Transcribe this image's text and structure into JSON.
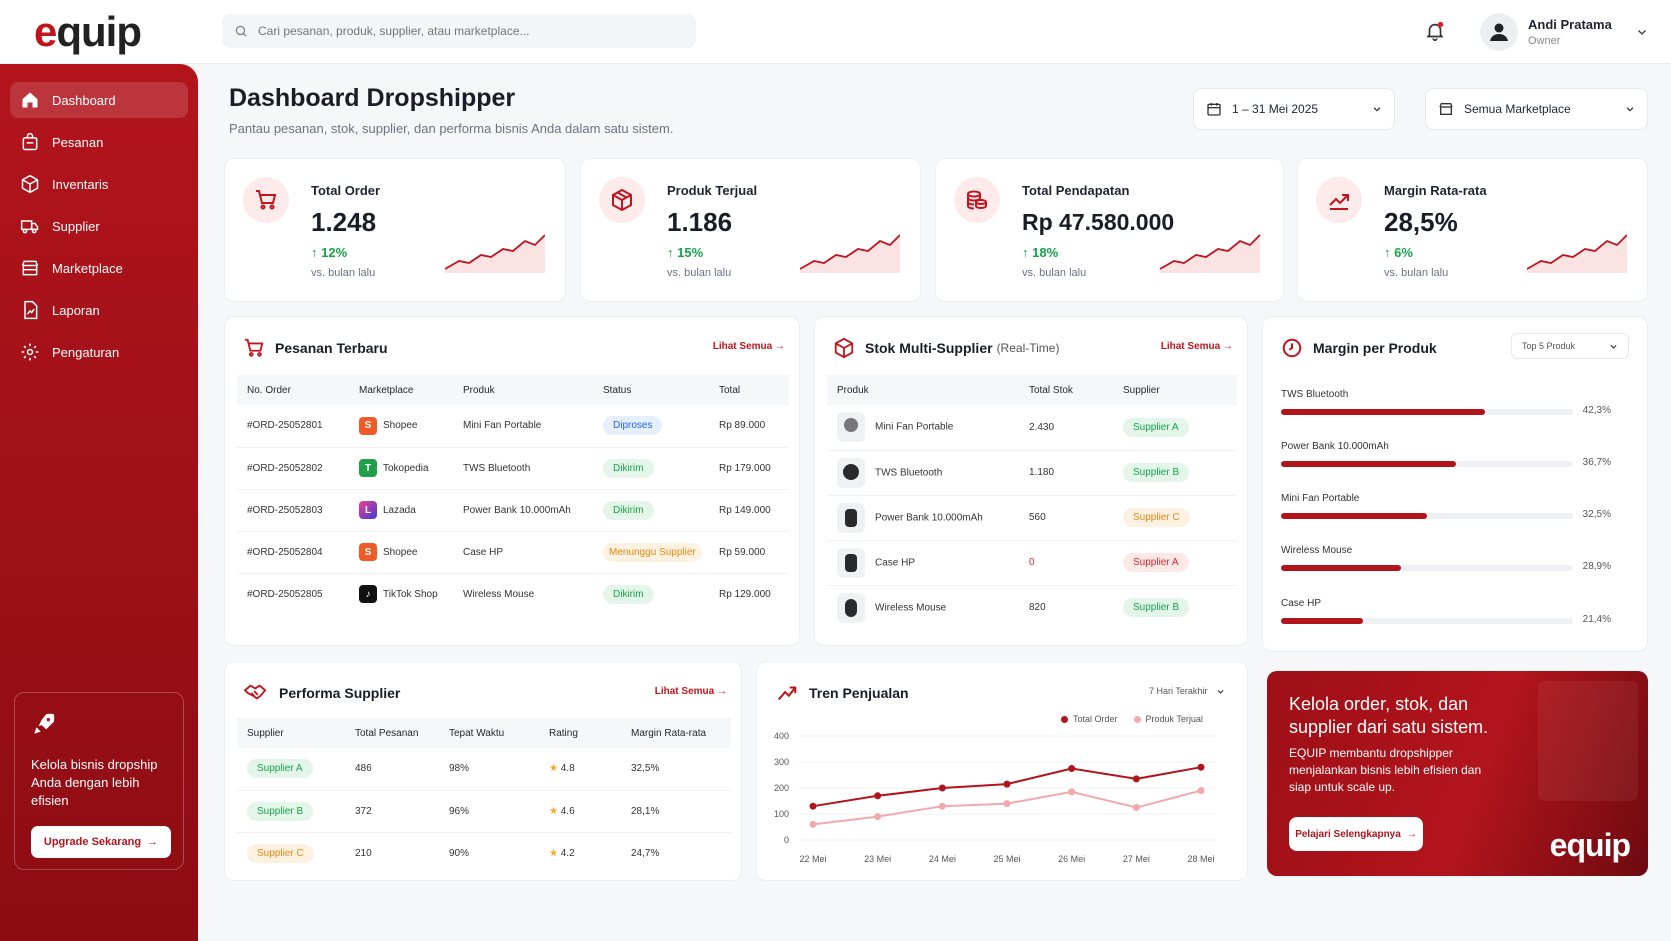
{
  "brand": {
    "logo_text": "equip",
    "logo_accent": "e",
    "logo_rest": "quip",
    "accent_color": "#c0151e"
  },
  "search": {
    "placeholder": "Cari pesanan, produk, supplier, atau marketplace..."
  },
  "user": {
    "name": "Andi Pratama",
    "role": "Owner"
  },
  "sidebar": {
    "items": [
      {
        "label": "Dashboard",
        "icon": "home-icon",
        "active": true
      },
      {
        "label": "Pesanan",
        "icon": "bag-icon"
      },
      {
        "label": "Inventaris",
        "icon": "box-icon"
      },
      {
        "label": "Supplier",
        "icon": "truck-icon"
      },
      {
        "label": "Marketplace",
        "icon": "store-icon"
      },
      {
        "label": "Laporan",
        "icon": "report-icon"
      },
      {
        "label": "Pengaturan",
        "icon": "gear-icon"
      }
    ],
    "promo": {
      "text": "Kelola bisnis dropship Anda dengan lebih efisien",
      "button": "Upgrade Sekarang"
    }
  },
  "header": {
    "title": "Dashboard Dropshipper",
    "subtitle": "Pantau pesanan, stok, supplier, dan performa bisnis Anda dalam satu sistem.",
    "date_range": "1 – 31 Mei 2025",
    "marketplace_filter": "Semua Marketplace"
  },
  "stats": [
    {
      "label": "Total Order",
      "value": "1.248",
      "growth": "12%",
      "note": "vs. bulan lalu",
      "icon": "cart-icon"
    },
    {
      "label": "Produk Terjual",
      "value": "1.186",
      "growth": "15%",
      "note": "vs. bulan lalu",
      "icon": "package-icon"
    },
    {
      "label": "Total Pendapatan",
      "value": "Rp 47.580.000",
      "growth": "18%",
      "note": "vs. bulan lalu",
      "icon": "coins-icon"
    },
    {
      "label": "Margin Rata-rata",
      "value": "28,5%",
      "growth": "6%",
      "note": "vs. bulan lalu",
      "icon": "trend-icon"
    }
  ],
  "orders": {
    "title": "Pesanan Terbaru",
    "see_all": "Lihat Semua",
    "columns": [
      "No. Order",
      "Marketplace",
      "Produk",
      "Status",
      "Total"
    ],
    "rows": [
      {
        "id": "#ORD-25052801",
        "marketplace": "Shopee",
        "product": "Mini Fan Portable",
        "status": "Diproses",
        "total": "Rp 89.000"
      },
      {
        "id": "#ORD-25052802",
        "marketplace": "Tokopedia",
        "product": "TWS Bluetooth",
        "status": "Dikirim",
        "total": "Rp 179.000"
      },
      {
        "id": "#ORD-25052803",
        "marketplace": "Lazada",
        "product": "Power Bank 10.000mAh",
        "status": "Dikirim",
        "total": "Rp 149.000"
      },
      {
        "id": "#ORD-25052804",
        "marketplace": "Shopee",
        "product": "Case HP",
        "status": "Menunggu Supplier",
        "total": "Rp 59.000"
      },
      {
        "id": "#ORD-25052805",
        "marketplace": "TikTok Shop",
        "product": "Wireless Mouse",
        "status": "Dikirim",
        "total": "Rp 129.000"
      }
    ]
  },
  "stock": {
    "title": "Stok Multi-Supplier",
    "title_suffix": "(Real-Time)",
    "see_all": "Lihat Semua",
    "columns": [
      "Produk",
      "Total Stok",
      "Supplier"
    ],
    "rows": [
      {
        "product": "Mini Fan Portable",
        "stock": "2.430",
        "supplier": "Supplier A"
      },
      {
        "product": "TWS Bluetooth",
        "stock": "1.180",
        "supplier": "Supplier B"
      },
      {
        "product": "Power Bank 10.000mAh",
        "stock": "560",
        "supplier": "Supplier C"
      },
      {
        "product": "Case HP",
        "stock": "0",
        "supplier": "Supplier A"
      },
      {
        "product": "Wireless Mouse",
        "stock": "820",
        "supplier": "Supplier B"
      }
    ]
  },
  "margin": {
    "title": "Margin per Produk",
    "filter": "Top 5 Produk",
    "rows": [
      {
        "product": "TWS Bluetooth",
        "value": "42,3%",
        "pct": 0.7
      },
      {
        "product": "Power Bank 10.000mAh",
        "value": "36,7%",
        "pct": 0.6
      },
      {
        "product": "Mini Fan Portable",
        "value": "32,5%",
        "pct": 0.5
      },
      {
        "product": "Wireless Mouse",
        "value": "28,9%",
        "pct": 0.41
      },
      {
        "product": "Case HP",
        "value": "21,4%",
        "pct": 0.28
      }
    ]
  },
  "suppliers": {
    "title": "Performa Supplier",
    "see_all": "Lihat Semua",
    "columns": [
      "Supplier",
      "Total Pesanan",
      "Tepat Waktu",
      "Rating",
      "Margin Rata-rata"
    ],
    "rows": [
      {
        "name": "Supplier A",
        "orders": "486",
        "ontime": "98%",
        "rating": "4.8",
        "margin": "32,5%"
      },
      {
        "name": "Supplier B",
        "orders": "372",
        "ontime": "96%",
        "rating": "4.6",
        "margin": "28,1%"
      },
      {
        "name": "Supplier C",
        "orders": "210",
        "ontime": "90%",
        "rating": "4.2",
        "margin": "24,7%"
      }
    ]
  },
  "trend": {
    "title": "Tren Penjualan",
    "filter": "7 Hari Terakhir"
  },
  "chart_data": {
    "type": "line",
    "x": [
      "22 Mei",
      "23 Mei",
      "24 Mei",
      "25 Mei",
      "26 Mei",
      "27 Mei",
      "28 Mei"
    ],
    "series": [
      {
        "name": "Total Order",
        "values": [
          130,
          170,
          200,
          215,
          275,
          235,
          280
        ],
        "color": "#b3141c"
      },
      {
        "name": "Produk Terjual",
        "values": [
          60,
          90,
          130,
          140,
          185,
          125,
          190
        ],
        "color": "#f2a9ae"
      }
    ],
    "ylim": [
      0,
      400
    ],
    "yticks": [
      0,
      100,
      200,
      300,
      400
    ],
    "grid": true,
    "legend": "top-right"
  },
  "banner": {
    "title": "Kelola order, stok, dan supplier dari satu sistem.",
    "text": "EQUIP membantu dropshipper menjalankan bisnis lebih efisien dan siap untuk scale up.",
    "button": "Pelajari Selengkapnya",
    "logo": "equip"
  }
}
